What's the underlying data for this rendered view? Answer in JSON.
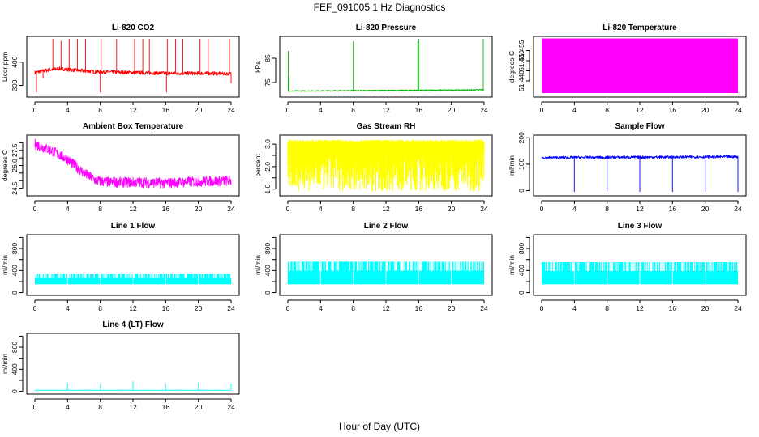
{
  "figure": {
    "title": "FEF_091005  1 Hz Diagnostics",
    "xlabel": "Hour of Day (UTC)"
  },
  "colors": {
    "red": "#ff0000",
    "green": "#00b400",
    "magenta": "#ff00ff",
    "yellow": "#ffff00",
    "blue": "#0000ff",
    "cyan": "#00ffff"
  },
  "chart_data": [
    {
      "id": "co2",
      "type": "line",
      "title": "Li-820 CO2",
      "ylabel": "Licor ppm",
      "color": "red",
      "xlim": [
        0,
        24
      ],
      "ylim": [
        250,
        510
      ],
      "xticks": [
        0,
        4,
        8,
        12,
        16,
        20,
        24
      ],
      "yticks": [
        300,
        400
      ],
      "series": [
        {
          "base": [
            [
              0,
              355
            ],
            [
              1,
              362
            ],
            [
              2,
              368
            ],
            [
              3,
              372
            ],
            [
              4,
              368
            ],
            [
              6,
              362
            ],
            [
              8,
              358
            ],
            [
              12,
              355
            ],
            [
              16,
              352
            ],
            [
              20,
              352
            ],
            [
              24,
              350
            ]
          ],
          "noise": 8,
          "spikes": [
            [
              0.2,
              270
            ],
            [
              1,
              330
            ],
            [
              2.2,
              500
            ],
            [
              3.2,
              490
            ],
            [
              4.2,
              500
            ],
            [
              5.2,
              500
            ],
            [
              6.2,
              500
            ],
            [
              8.1,
              500
            ],
            [
              8,
              270
            ],
            [
              10,
              500
            ],
            [
              12.2,
              500
            ],
            [
              13.2,
              500
            ],
            [
              14,
              500
            ],
            [
              16.2,
              500
            ],
            [
              16.1,
              270
            ],
            [
              17.2,
              500
            ],
            [
              18.1,
              500
            ],
            [
              20.2,
              500
            ],
            [
              21.2,
              500
            ],
            [
              23.8,
              500
            ],
            [
              24,
              310
            ]
          ]
        }
      ]
    },
    {
      "id": "pressure",
      "type": "line",
      "title": "Li-820 Pressure",
      "ylabel": "kPa",
      "color": "green",
      "xlim": [
        0,
        24
      ],
      "ylim": [
        69,
        94
      ],
      "xticks": [
        0,
        4,
        8,
        12,
        16,
        20,
        24
      ],
      "yticks": [
        75,
        85
      ],
      "series": [
        {
          "base": [
            [
              0,
              71.5
            ],
            [
              24,
              72
            ]
          ],
          "noise": 0.2,
          "spikes": [
            [
              0.05,
              88
            ],
            [
              0.1,
              78
            ],
            [
              8,
              92
            ],
            [
              15.9,
              92
            ],
            [
              16,
              93
            ],
            [
              23.9,
              93
            ]
          ]
        }
      ]
    },
    {
      "id": "temperature",
      "type": "area",
      "title": "Li-820 Temperature",
      "ylabel": "degrees C",
      "color": "magenta",
      "xlim": [
        0,
        24
      ],
      "ylim": [
        51.432,
        51.462
      ],
      "xticks": [
        0,
        4,
        8,
        12,
        16,
        20,
        24
      ],
      "yticks": [
        51.44,
        51.445,
        51.45,
        51.455
      ],
      "ytick_labels": [
        "51.440",
        "",
        "51.450",
        "51.455"
      ],
      "series": [
        {
          "fill": [
            51.434,
            51.461
          ]
        }
      ]
    },
    {
      "id": "ambient",
      "type": "line",
      "title": "Ambient Box Temperature",
      "ylabel": "degrees C",
      "color": "magenta",
      "xlim": [
        0,
        24
      ],
      "ylim": [
        24.0,
        28.0
      ],
      "xticks": [
        0,
        4,
        8,
        12,
        16,
        20,
        24
      ],
      "yticks": [
        24.5,
        25.0,
        25.5,
        26.0,
        26.5,
        27.0,
        27.5
      ],
      "ytick_labels": [
        "24.5",
        "",
        "",
        "26.0",
        "",
        "27.5",
        ""
      ],
      "series": [
        {
          "base": [
            [
              0,
              27.4
            ],
            [
              2,
              27.0
            ],
            [
              4,
              26.4
            ],
            [
              6,
              25.5
            ],
            [
              7.5,
              25.0
            ],
            [
              9,
              24.9
            ],
            [
              12,
              24.9
            ],
            [
              16,
              24.85
            ],
            [
              20,
              24.95
            ],
            [
              24,
              25.0
            ]
          ],
          "noise": 0.35
        }
      ]
    },
    {
      "id": "rh",
      "type": "band",
      "title": "Gas Stream RH",
      "ylabel": "percent",
      "color": "yellow",
      "xlim": [
        0,
        24
      ],
      "ylim": [
        0.7,
        3.4
      ],
      "xticks": [
        0,
        4,
        8,
        12,
        16,
        20,
        24
      ],
      "yticks": [
        1.0,
        1.5,
        2.0,
        2.5,
        3.0
      ],
      "ytick_labels": [
        "1.0",
        "",
        "2.0",
        "",
        "3.0"
      ],
      "series": [
        {
          "low": 0.9,
          "high": 3.2,
          "upper": 3.05,
          "lower_band": [
            1.0,
            2.6
          ]
        }
      ]
    },
    {
      "id": "sample_flow",
      "type": "line",
      "title": "Sample Flow",
      "ylabel": "ml/min",
      "color": "blue",
      "xlim": [
        0,
        24
      ],
      "ylim": [
        -20,
        210
      ],
      "xticks": [
        0,
        4,
        8,
        12,
        16,
        20,
        24
      ],
      "yticks": [
        0,
        100,
        200
      ],
      "series": [
        {
          "base": [
            [
              0,
              125
            ],
            [
              24,
              128
            ]
          ],
          "noise": 5,
          "spikes": [
            [
              4,
              -5
            ],
            [
              8,
              -5
            ],
            [
              12,
              -5
            ],
            [
              16,
              -5
            ],
            [
              20,
              -5
            ],
            [
              24,
              -5
            ]
          ]
        }
      ]
    },
    {
      "id": "line1",
      "type": "band",
      "title": "Line 1 Flow",
      "ylabel": "ml/min",
      "color": "cyan",
      "xlim": [
        0,
        24
      ],
      "ylim": [
        -50,
        1050
      ],
      "xticks": [
        0,
        4,
        8,
        12,
        16,
        20,
        24
      ],
      "yticks": [
        0,
        200,
        400,
        600,
        800,
        1000
      ],
      "ytick_labels": [
        "0",
        "",
        "400",
        "",
        "800",
        ""
      ],
      "series": [
        {
          "low": 150,
          "high": 340,
          "gaps": [
            4,
            8,
            12,
            16,
            20
          ]
        }
      ]
    },
    {
      "id": "line2",
      "type": "band",
      "title": "Line 2 Flow",
      "ylabel": "ml/min",
      "color": "cyan",
      "xlim": [
        0,
        24
      ],
      "ylim": [
        -50,
        1050
      ],
      "xticks": [
        0,
        4,
        8,
        12,
        16,
        20,
        24
      ],
      "yticks": [
        0,
        200,
        400,
        600,
        800,
        1000
      ],
      "ytick_labels": [
        "0",
        "",
        "400",
        "",
        "800",
        ""
      ],
      "series": [
        {
          "low": 150,
          "high": 560,
          "gaps": [
            4,
            8,
            12,
            16,
            20
          ]
        }
      ]
    },
    {
      "id": "line3",
      "type": "band",
      "title": "Line 3 Flow",
      "ylabel": "ml/min",
      "color": "cyan",
      "xlim": [
        0,
        24
      ],
      "ylim": [
        -50,
        1050
      ],
      "xticks": [
        0,
        4,
        8,
        12,
        16,
        20,
        24
      ],
      "yticks": [
        0,
        200,
        400,
        600,
        800,
        1000
      ],
      "ytick_labels": [
        "0",
        "",
        "400",
        "",
        "800",
        ""
      ],
      "series": [
        {
          "low": 150,
          "high": 550,
          "gaps": [
            4,
            8,
            12,
            16,
            20
          ]
        }
      ]
    },
    {
      "id": "line4",
      "type": "line",
      "title": "Line 4 (LT) Flow",
      "ylabel": "ml/min",
      "color": "cyan",
      "xlim": [
        0,
        24
      ],
      "ylim": [
        -50,
        1050
      ],
      "xticks": [
        0,
        4,
        8,
        12,
        16,
        20,
        24
      ],
      "yticks": [
        0,
        200,
        400,
        600,
        800,
        1000
      ],
      "ytick_labels": [
        "0",
        "",
        "400",
        "",
        "800",
        ""
      ],
      "series": [
        {
          "base": [
            [
              0,
              20
            ],
            [
              24,
              20
            ]
          ],
          "noise": 3,
          "spikes": [
            [
              4,
              150
            ],
            [
              8,
              120
            ],
            [
              12,
              180
            ],
            [
              16,
              130
            ],
            [
              20,
              160
            ],
            [
              24,
              140
            ]
          ]
        }
      ]
    }
  ]
}
